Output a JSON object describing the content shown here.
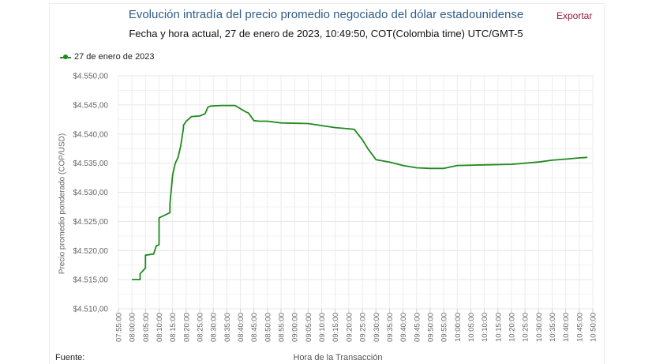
{
  "header": {
    "title": "Evolución intradía del precio promedio negociado del dólar estadounidense",
    "subtitle": "Fecha y hora actual, 27 de enero de 2023, 10:49:50, COT(Colombia time) UTC/GMT-5",
    "export_label": "Exportar"
  },
  "legend": {
    "label": "27 de enero de 2023",
    "color": "#1e8a1e"
  },
  "footer": {
    "source_label": "Fuente:"
  },
  "chart_data": {
    "type": "line",
    "title": "Evolución intradía del precio promedio negociado del dólar estadounidense",
    "subtitle": "Fecha y hora actual, 27 de enero de 2023, 10:49:50, COT(Colombia time) UTC/GMT-5",
    "xlabel": "Hora de la Transacción",
    "ylabel": "Precio promedio ponderado (COP/USD)",
    "ylim": [
      4510,
      4550
    ],
    "yticks": [
      "$4.510,00",
      "$4.515,00",
      "$4.520,00",
      "$4.525,00",
      "$4.530,00",
      "$4.535,00",
      "$4.540,00",
      "$4.545,00",
      "$4.550,00"
    ],
    "xticks": [
      "07:55:00",
      "08:00:00",
      "08:05:00",
      "08:10:00",
      "08:15:00",
      "08:20:00",
      "08:25:00",
      "08:30:00",
      "08:35:00",
      "08:40:00",
      "08:45:00",
      "08:50:00",
      "08:55:00",
      "09:00:00",
      "09:05:00",
      "09:10:00",
      "09:15:00",
      "09:20:00",
      "09:25:00",
      "09:30:00",
      "09:35:00",
      "09:40:00",
      "09:45:00",
      "09:50:00",
      "09:55:00",
      "10:00:00",
      "10:05:00",
      "10:10:00",
      "10:15:00",
      "10:20:00",
      "10:25:00",
      "10:30:00",
      "10:35:00",
      "10:40:00",
      "10:45:00",
      "10:50:00"
    ],
    "grid": true,
    "legend_position": "top-left",
    "series": [
      {
        "name": "27 de enero de 2023",
        "color": "#1e8a1e",
        "x": [
          "08:00",
          "08:03",
          "08:03",
          "08:05",
          "08:05",
          "08:08",
          "08:09",
          "08:10",
          "08:10",
          "08:14",
          "08:14",
          "08:15",
          "08:16",
          "08:17",
          "08:18",
          "08:19",
          "08:19",
          "08:20",
          "08:21",
          "08:22",
          "08:25",
          "08:27",
          "08:28",
          "08:29",
          "08:33",
          "08:35",
          "08:38",
          "08:42",
          "08:43",
          "08:45",
          "08:47",
          "08:50",
          "08:55",
          "09:05",
          "09:15",
          "09:20",
          "09:22",
          "09:25",
          "09:27",
          "09:30",
          "09:35",
          "09:40",
          "09:45",
          "09:50",
          "09:55",
          "10:00",
          "10:10",
          "10:20",
          "10:30",
          "10:35",
          "10:40",
          "10:45",
          "10:48"
        ],
        "values": [
          4515.0,
          4515.0,
          4516.0,
          4517.0,
          4519.2,
          4519.4,
          4520.8,
          4521.0,
          4525.6,
          4526.5,
          4528.0,
          4533.0,
          4535.0,
          4536.0,
          4538.0,
          4541.0,
          4541.5,
          4542.2,
          4542.6,
          4543.0,
          4543.1,
          4543.5,
          4544.6,
          4544.8,
          4544.9,
          4544.9,
          4544.9,
          4543.8,
          4543.6,
          4542.3,
          4542.2,
          4542.2,
          4541.9,
          4541.8,
          4541.1,
          4540.9,
          4540.8,
          4539.0,
          4537.5,
          4535.6,
          4535.2,
          4534.6,
          4534.2,
          4534.1,
          4534.1,
          4534.6,
          4534.7,
          4534.8,
          4535.2,
          4535.5,
          4535.7,
          4535.9,
          4536.0
        ]
      }
    ]
  }
}
